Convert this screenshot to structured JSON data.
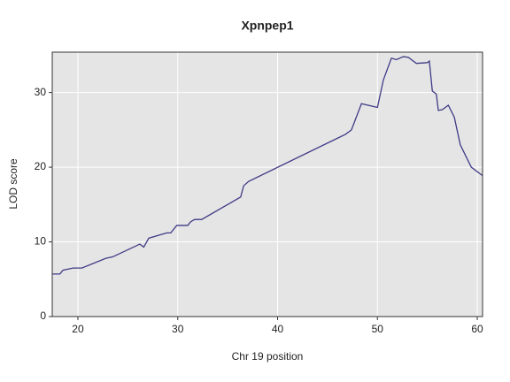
{
  "chart_data": {
    "type": "line",
    "title": "Xpnpep1",
    "x_label": "Chr 19 position",
    "y_label": "LOD score",
    "x": [
      17.43,
      18.2,
      18.5,
      19.5,
      20.4,
      22.8,
      23.5,
      26.2,
      26.6,
      27.1,
      28.9,
      29.3,
      29.9,
      31.0,
      31.3,
      31.7,
      32.4,
      36.3,
      36.6,
      37.1,
      46.8,
      47.4,
      48.4,
      50.0,
      50.6,
      51.4,
      51.9,
      52.6,
      53.1,
      53.9,
      55.0,
      55.2,
      55.5,
      55.9,
      56.1,
      56.5,
      57.1,
      57.7,
      58.3,
      59.4,
      60.5
    ],
    "series": [
      {
        "name": "LOD",
        "color": "#3f3a86",
        "values": [
          5.7,
          5.7,
          6.2,
          6.5,
          6.5,
          7.8,
          8.0,
          9.7,
          9.3,
          10.5,
          11.2,
          11.2,
          12.2,
          12.2,
          12.7,
          13.0,
          13.0,
          16.0,
          17.5,
          18.1,
          24.4,
          25.0,
          28.5,
          28.0,
          31.7,
          34.6,
          34.4,
          34.8,
          34.7,
          33.9,
          34.0,
          34.2,
          30.2,
          29.8,
          27.6,
          27.7,
          28.3,
          26.7,
          23.0,
          20.0,
          18.9
        ]
      }
    ],
    "xlim": [
      17.43,
      60.53
    ],
    "xticks": [
      20,
      30,
      40,
      50,
      60
    ],
    "ylim": [
      0,
      35.4
    ],
    "yticks": [
      0,
      10,
      20,
      30
    ],
    "grid": true
  }
}
